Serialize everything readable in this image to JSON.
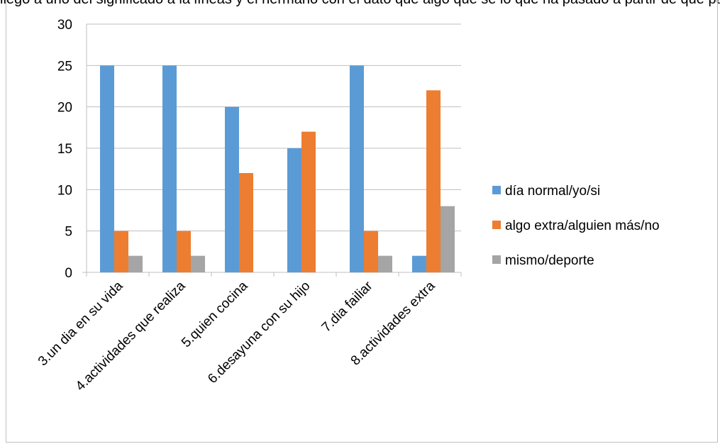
{
  "top_text": "llegó a uno del significado a la líneas y el hermano con el dato que algo que sé lo que ha pasado a partir de qué para",
  "chart_data": {
    "type": "bar",
    "title": "",
    "xlabel": "",
    "ylabel": "",
    "categories": [
      "3.un dia en su vida",
      "4.actividades que realiza",
      "5.quien cocina",
      "6.desayuna con su hijo",
      "7.dia failiar",
      "8.actividades extra"
    ],
    "series": [
      {
        "name": "día normal/yo/si",
        "color": "#5b9bd5",
        "values": [
          25,
          25,
          20,
          15,
          25,
          2
        ]
      },
      {
        "name": "algo extra/alguien más/no",
        "color": "#ed7d31",
        "values": [
          5,
          5,
          12,
          17,
          5,
          22
        ]
      },
      {
        "name": "mismo/deporte",
        "color": "#a5a5a5",
        "values": [
          2,
          2,
          0,
          0,
          2,
          8
        ]
      }
    ],
    "ylim": [
      0,
      30
    ],
    "yticks": [
      0,
      5,
      10,
      15,
      20,
      25,
      30
    ],
    "grid": true,
    "legend_position": "right"
  }
}
